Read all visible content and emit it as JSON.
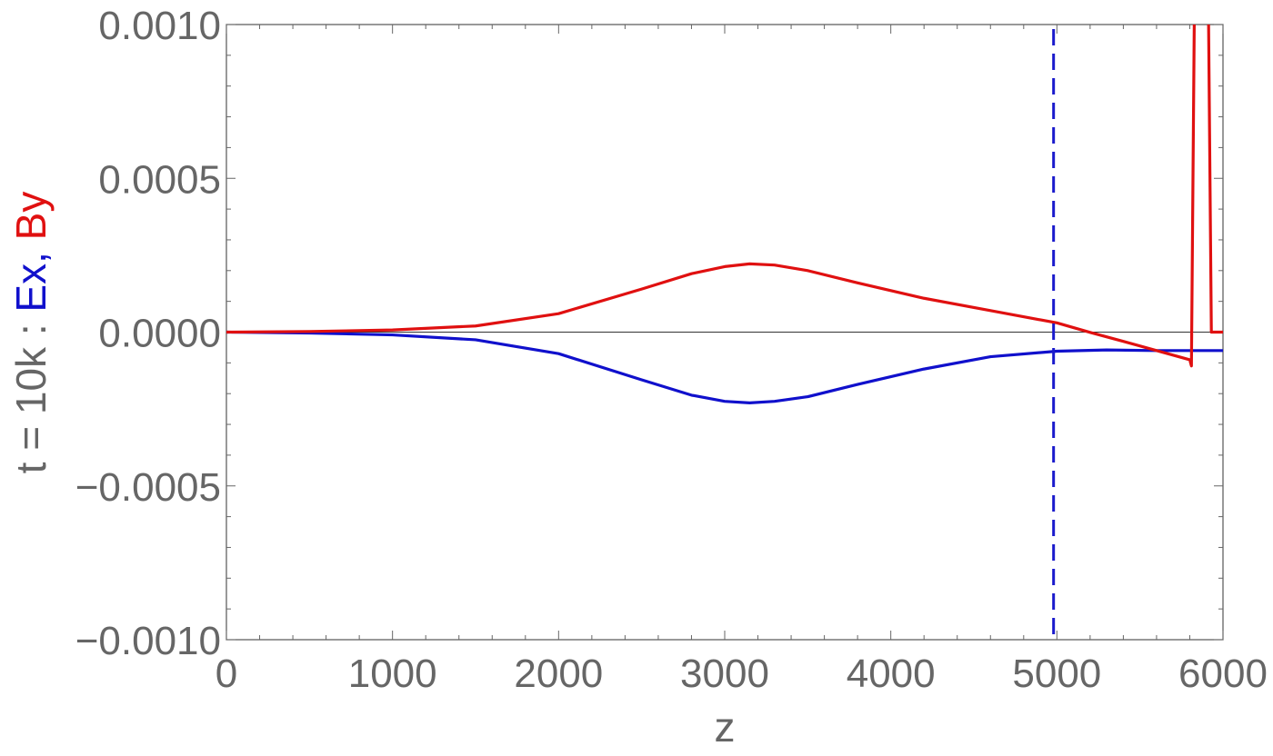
{
  "chart_data": {
    "type": "line",
    "xlabel": "z",
    "ylabel": {
      "prefix": "t = 10k : ",
      "ex_label": "Ex",
      "separator": ", ",
      "by_label": "By"
    },
    "xlim": [
      0,
      6000
    ],
    "ylim": [
      -0.001,
      0.001
    ],
    "x_ticks": [
      0,
      1000,
      2000,
      3000,
      4000,
      5000,
      6000
    ],
    "x_tick_labels": [
      "0",
      "1000",
      "2000",
      "3000",
      "4000",
      "5000",
      "6000"
    ],
    "y_ticks": [
      0.001,
      0.0005,
      0.0,
      -0.0005,
      -0.001
    ],
    "y_tick_labels": [
      "0.0010",
      "0.0005",
      "0.0000",
      "−0.0005",
      "−0.0010"
    ],
    "grid": false,
    "zero_line": true,
    "vertical_marker": {
      "x": 4980,
      "style": "dashed",
      "color": "#1a1acc"
    },
    "series": [
      {
        "name": "Ex",
        "color": "#1010cc",
        "x": [
          0,
          500,
          1000,
          1500,
          2000,
          2500,
          2800,
          3000,
          3150,
          3300,
          3500,
          3800,
          4200,
          4600,
          5000,
          5300,
          5600,
          5820,
          5830,
          5900,
          6000
        ],
        "y": [
          0,
          -3e-06,
          -9e-06,
          -2.5e-05,
          -7e-05,
          -0.000155,
          -0.000205,
          -0.000225,
          -0.00023,
          -0.000225,
          -0.00021,
          -0.00017,
          -0.00012,
          -8e-05,
          -6.2e-05,
          -5.8e-05,
          -6e-05,
          -6e-05,
          -6e-05,
          -6e-05,
          -6e-05
        ]
      },
      {
        "name": "By",
        "color": "#e01010",
        "x": [
          0,
          500,
          1000,
          1500,
          2000,
          2500,
          2800,
          3000,
          3150,
          3300,
          3500,
          3800,
          4200,
          4600,
          5000,
          5200,
          5400,
          5600,
          5800,
          5810,
          5830,
          5850,
          5870,
          5890,
          5910,
          5930,
          6000
        ],
        "y": [
          0,
          2e-06,
          7e-06,
          2e-05,
          6e-05,
          0.00014,
          0.00019,
          0.000213,
          0.000222,
          0.000218,
          0.0002,
          0.00016,
          0.00011,
          7e-05,
          3e-05,
          -1e-06,
          -3e-05,
          -6e-05,
          -9e-05,
          -0.00011,
          0.0012,
          0.0012,
          0.0012,
          0.0012,
          0.0012,
          0.0,
          0.0
        ]
      }
    ]
  }
}
